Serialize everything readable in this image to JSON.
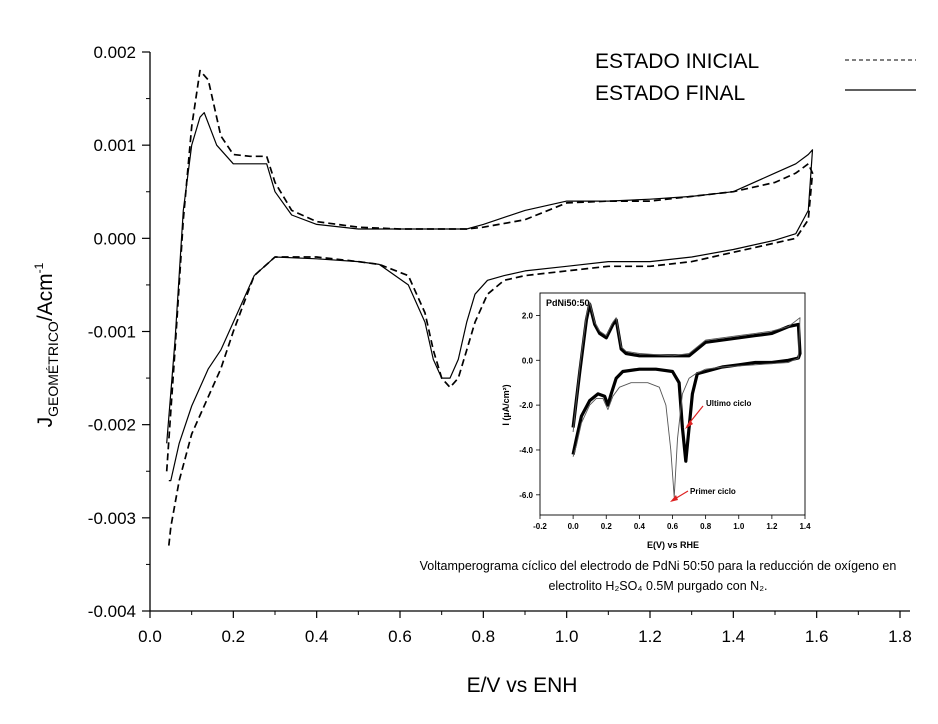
{
  "chart_data": [
    {
      "type": "line",
      "xlabel": "E/V vs ENH",
      "ylabel": {
        "base": "J",
        "sub": "GEOMÉTRICO",
        "unit": "/Acm",
        "sup": "-1"
      },
      "xlim": [
        0.0,
        1.8
      ],
      "ylim": [
        -0.004,
        0.002
      ],
      "xticks": [
        "0.0",
        "0.2",
        "0.4",
        "0.6",
        "0.8",
        "1.0",
        "1.2",
        "1.4",
        "1.6",
        "1.8"
      ],
      "yticks": [
        "0.002",
        "0.001",
        "0.000",
        "-0.001",
        "-0.002",
        "-0.003",
        "-0.004"
      ],
      "legend_position": "top-right",
      "series": [
        {
          "name": "ESTADO INICIAL",
          "style": "dashed",
          "x": [
            0.04,
            0.06,
            0.08,
            0.1,
            0.12,
            0.14,
            0.17,
            0.2,
            0.24,
            0.28,
            0.3,
            0.34,
            0.4,
            0.5,
            0.6,
            0.7,
            0.76,
            0.8,
            0.9,
            1.0,
            1.1,
            1.2,
            1.3,
            1.4,
            1.5,
            1.55,
            1.58,
            1.59,
            1.58,
            1.55,
            1.5,
            1.4,
            1.3,
            1.2,
            1.1,
            1.0,
            0.9,
            0.85,
            0.81,
            0.78,
            0.76,
            0.74,
            0.72,
            0.7,
            0.68,
            0.66,
            0.62,
            0.55,
            0.5,
            0.4,
            0.3,
            0.25,
            0.2,
            0.17,
            0.14,
            0.1,
            0.07,
            0.05,
            0.045
          ],
          "y": [
            -0.0025,
            -0.0012,
            0.0002,
            0.0012,
            0.0018,
            0.0017,
            0.0011,
            0.0009,
            0.00088,
            0.00088,
            0.0006,
            0.0003,
            0.00018,
            0.00012,
            0.0001,
            0.0001,
            0.0001,
            0.00012,
            0.0002,
            0.00038,
            0.0004,
            0.0004,
            0.00045,
            0.0005,
            0.0006,
            0.0007,
            0.0008,
            0.0007,
            0.0002,
            0.0,
            -5e-05,
            -0.00015,
            -0.00025,
            -0.0003,
            -0.0003,
            -0.00035,
            -0.0004,
            -0.00045,
            -0.0006,
            -0.0009,
            -0.0012,
            -0.0015,
            -0.0016,
            -0.0015,
            -0.0012,
            -0.0008,
            -0.0004,
            -0.00028,
            -0.00025,
            -0.0002,
            -0.0002,
            -0.0004,
            -0.001,
            -0.0014,
            -0.0017,
            -0.0021,
            -0.0026,
            -0.0031,
            -0.0033
          ]
        },
        {
          "name": "ESTADO FINAL",
          "style": "solid",
          "x": [
            0.04,
            0.06,
            0.08,
            0.1,
            0.12,
            0.13,
            0.16,
            0.2,
            0.24,
            0.28,
            0.3,
            0.34,
            0.4,
            0.5,
            0.6,
            0.7,
            0.76,
            0.8,
            0.9,
            1.0,
            1.1,
            1.2,
            1.3,
            1.4,
            1.5,
            1.55,
            1.58,
            1.59,
            1.58,
            1.55,
            1.5,
            1.4,
            1.3,
            1.2,
            1.1,
            1.0,
            0.9,
            0.85,
            0.81,
            0.78,
            0.76,
            0.74,
            0.72,
            0.7,
            0.68,
            0.66,
            0.62,
            0.55,
            0.5,
            0.4,
            0.3,
            0.25,
            0.2,
            0.17,
            0.14,
            0.1,
            0.07,
            0.05,
            0.045
          ],
          "y": [
            -0.0022,
            -0.0011,
            0.0003,
            0.001,
            0.0013,
            0.00135,
            0.001,
            0.0008,
            0.0008,
            0.0008,
            0.0005,
            0.00025,
            0.00015,
            0.0001,
            0.0001,
            0.0001,
            0.0001,
            0.00015,
            0.0003,
            0.0004,
            0.0004,
            0.00042,
            0.00045,
            0.0005,
            0.0007,
            0.0008,
            0.0009,
            0.00095,
            0.0003,
            5e-05,
            -2e-05,
            -0.00012,
            -0.0002,
            -0.00025,
            -0.00025,
            -0.0003,
            -0.00035,
            -0.0004,
            -0.00045,
            -0.0006,
            -0.0009,
            -0.0013,
            -0.0015,
            -0.0015,
            -0.0013,
            -0.0009,
            -0.0005,
            -0.00028,
            -0.00025,
            -0.00022,
            -0.0002,
            -0.0004,
            -0.0009,
            -0.0012,
            -0.0014,
            -0.0018,
            -0.0022,
            -0.0026,
            -0.0026
          ]
        }
      ]
    },
    {
      "type": "line",
      "title": "PdNi50:50",
      "xlabel": "E(V) vs RHE",
      "ylabel": "I (µA/cm²)",
      "xlim": [
        -0.2,
        1.4
      ],
      "ylim": [
        -6.9,
        3.0
      ],
      "xticks": [
        "-0.2",
        "0.0",
        "0.2",
        "0.4",
        "0.6",
        "0.8",
        "1.0",
        "1.2",
        "1.4"
      ],
      "yticks": [
        "2.0",
        "0.0",
        "-2.0",
        "-4.0",
        "-6.0"
      ],
      "annotations": [
        "Ultimo ciclo",
        "Primer ciclo"
      ],
      "caption_lines": [
        "Voltamperograma cíclico del electrodo de PdNi 50:50 para la  reducción de oxígeno en",
        "electrolito H₂SO₄ 0.5M purgado con N₂."
      ],
      "series": [
        {
          "style": "bold",
          "x": [
            0.0,
            0.04,
            0.08,
            0.1,
            0.13,
            0.16,
            0.2,
            0.24,
            0.26,
            0.29,
            0.32,
            0.4,
            0.6,
            0.7,
            0.8,
            0.9,
            1.0,
            1.1,
            1.2,
            1.3,
            1.36,
            1.37,
            1.36,
            1.3,
            1.2,
            1.1,
            1.0,
            0.9,
            0.8,
            0.75,
            0.72,
            0.7,
            0.68,
            0.66,
            0.64,
            0.6,
            0.5,
            0.4,
            0.3,
            0.26,
            0.23,
            0.21,
            0.19,
            0.15,
            0.1,
            0.05,
            0.02,
            0.0
          ],
          "y": [
            -3.0,
            -0.5,
            1.8,
            2.5,
            1.6,
            1.2,
            1.0,
            1.6,
            1.8,
            0.5,
            0.3,
            0.2,
            0.2,
            0.2,
            0.8,
            0.9,
            1.0,
            1.1,
            1.2,
            1.5,
            1.6,
            0.3,
            0.1,
            0.0,
            -0.1,
            -0.1,
            -0.2,
            -0.3,
            -0.5,
            -0.6,
            -1.5,
            -3.0,
            -4.5,
            -3.0,
            -1.0,
            -0.5,
            -0.4,
            -0.4,
            -0.5,
            -0.8,
            -1.5,
            -2.0,
            -1.6,
            -1.5,
            -1.8,
            -2.5,
            -3.5,
            -4.2
          ]
        },
        {
          "style": "thin",
          "x": [
            0.0,
            0.04,
            0.08,
            0.1,
            0.13,
            0.16,
            0.2,
            0.24,
            0.26,
            0.29,
            0.32,
            0.4,
            0.6,
            0.7,
            0.8,
            0.9,
            1.0,
            1.1,
            1.2,
            1.3,
            1.37,
            1.36,
            1.3,
            1.2,
            1.1,
            1.0,
            0.9,
            0.8,
            0.74,
            0.7,
            0.66,
            0.63,
            0.61,
            0.59,
            0.56,
            0.52,
            0.45,
            0.35,
            0.28,
            0.24,
            0.21,
            0.18,
            0.14,
            0.1,
            0.05,
            0.02,
            0.0
          ],
          "y": [
            -3.2,
            -0.3,
            2.0,
            2.6,
            1.7,
            1.3,
            1.1,
            1.7,
            1.9,
            0.6,
            0.4,
            0.3,
            0.2,
            0.3,
            0.9,
            1.0,
            1.1,
            1.2,
            1.3,
            1.5,
            1.9,
            0.1,
            -0.1,
            -0.15,
            -0.2,
            -0.25,
            -0.3,
            -0.4,
            -0.6,
            -0.8,
            -1.5,
            -3.5,
            -6.1,
            -4.0,
            -2.0,
            -1.2,
            -1.0,
            -1.0,
            -1.2,
            -1.6,
            -2.2,
            -1.7,
            -1.7,
            -2.0,
            -2.8,
            -3.8,
            -4.3
          ]
        }
      ]
    }
  ]
}
